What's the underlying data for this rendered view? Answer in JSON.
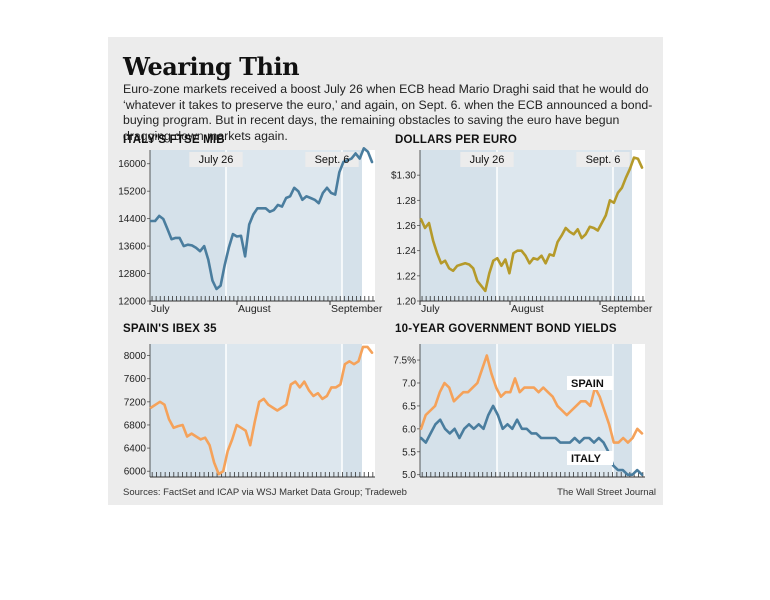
{
  "header": {
    "title": "Wearing Thin",
    "subtitle": "Euro-zone markets received a boost July 26 when ECB head Mario Draghi said that he would do ‘whatever it takes to preserve the euro,’ and again, on Sept. 6. when the ECB announced a bond-buying program. But in recent days, the remaining obstacles to saving the euro have begun dragging down markets again."
  },
  "footer": {
    "source": "Sources: FactSet and ICAP via WSJ Market Data Group; Tradeweb",
    "credit": "The Wall Street Journal"
  },
  "colors": {
    "panel": "#ececec",
    "plot_bg": "#d5e1ea",
    "italy": "#4a7d9e",
    "euro": "#b59a2a",
    "spain": "#f5a25a"
  },
  "chart_data": [
    {
      "type": "line",
      "title": "ITALY'S FTSE MIB",
      "x_ticks": [
        "July",
        "August",
        "September"
      ],
      "y_ticks": [
        "12000",
        "12800",
        "13600",
        "14400",
        "15200",
        "16000"
      ],
      "ylim": [
        12000,
        16400
      ],
      "event_labels": [
        "July 26",
        "Sept. 6"
      ],
      "series": [
        {
          "color": "#4a7d9e",
          "values": [
            14330,
            14330,
            14480,
            14390,
            14100,
            13800,
            13840,
            13840,
            13600,
            13640,
            13620,
            13550,
            13450,
            13600,
            13200,
            12600,
            12350,
            12450,
            13050,
            13550,
            13950,
            13880,
            13900,
            13300,
            14230,
            14520,
            14700,
            14700,
            14700,
            14600,
            14650,
            14800,
            14750,
            15000,
            15050,
            15300,
            15200,
            14950,
            15050,
            15000,
            14950,
            14850,
            15150,
            15300,
            15150,
            15100,
            15750,
            16050,
            16100,
            16150,
            16300,
            16150,
            16450,
            16350,
            16050
          ]
        }
      ]
    },
    {
      "type": "line",
      "title": "DOLLARS PER EURO",
      "x_ticks": [
        "July",
        "August",
        "September"
      ],
      "y_ticks": [
        "1.20",
        "1.22",
        "1.24",
        "1.26",
        "1.28",
        "$1.30"
      ],
      "ylim": [
        1.2,
        1.32
      ],
      "event_labels": [
        "July 26",
        "Sept. 6"
      ],
      "series": [
        {
          "color": "#b59a2a",
          "values": [
            1.265,
            1.258,
            1.262,
            1.248,
            1.238,
            1.23,
            1.232,
            1.226,
            1.224,
            1.228,
            1.229,
            1.23,
            1.229,
            1.226,
            1.216,
            1.212,
            1.208,
            1.222,
            1.232,
            1.234,
            1.228,
            1.233,
            1.222,
            1.238,
            1.24,
            1.24,
            1.236,
            1.23,
            1.234,
            1.233,
            1.236,
            1.23,
            1.237,
            1.236,
            1.247,
            1.252,
            1.258,
            1.255,
            1.253,
            1.257,
            1.25,
            1.253,
            1.259,
            1.258,
            1.256,
            1.262,
            1.268,
            1.28,
            1.278,
            1.286,
            1.29,
            1.298,
            1.305,
            1.314,
            1.313,
            1.306
          ]
        }
      ]
    },
    {
      "type": "line",
      "title": "SPAIN'S IBEX 35",
      "y_ticks": [
        "6000",
        "6400",
        "6800",
        "7200",
        "7600",
        "8000"
      ],
      "ylim": [
        5900,
        8200
      ],
      "series": [
        {
          "color": "#f5a25a",
          "values": [
            7100,
            7150,
            7200,
            7150,
            6900,
            6750,
            6780,
            6800,
            6600,
            6650,
            6600,
            6550,
            6580,
            6450,
            6150,
            5950,
            6000,
            6350,
            6550,
            6800,
            6750,
            6700,
            6450,
            6850,
            7200,
            7250,
            7150,
            7100,
            7050,
            7100,
            7150,
            7500,
            7550,
            7450,
            7550,
            7400,
            7300,
            7350,
            7250,
            7300,
            7450,
            7450,
            7500,
            7850,
            7900,
            7850,
            7900,
            8150,
            8150,
            8050
          ]
        }
      ]
    },
    {
      "type": "line",
      "title": "10-YEAR GOVERNMENT BOND YIELDS",
      "y_ticks": [
        "5.0",
        "5.5",
        "6.0",
        "6.5",
        "7.0",
        "7.5%"
      ],
      "ylim": [
        4.95,
        7.85
      ],
      "series": [
        {
          "name": "SPAIN",
          "color": "#f5a25a",
          "values": [
            6.0,
            6.3,
            6.4,
            6.5,
            6.8,
            7.0,
            6.9,
            6.6,
            6.7,
            6.8,
            6.8,
            6.9,
            7.0,
            7.3,
            7.6,
            7.2,
            6.9,
            6.7,
            6.8,
            6.8,
            7.1,
            6.8,
            6.9,
            6.9,
            6.9,
            6.8,
            6.9,
            6.8,
            6.7,
            6.5,
            6.4,
            6.3,
            6.4,
            6.5,
            6.6,
            6.6,
            6.5,
            6.9,
            6.7,
            6.4,
            6.1,
            5.7,
            5.7,
            5.8,
            5.7,
            5.8,
            6.0,
            5.9
          ]
        },
        {
          "name": "ITALY",
          "color": "#4a7d9e",
          "values": [
            5.8,
            5.7,
            5.9,
            6.1,
            6.2,
            6.0,
            5.9,
            6.0,
            5.8,
            6.0,
            6.1,
            6.0,
            6.1,
            6.0,
            6.3,
            6.5,
            6.3,
            6.0,
            6.1,
            6.0,
            6.2,
            6.0,
            6.0,
            5.9,
            5.9,
            5.8,
            5.8,
            5.8,
            5.8,
            5.7,
            5.7,
            5.7,
            5.8,
            5.7,
            5.8,
            5.8,
            5.7,
            5.8,
            5.7,
            5.5,
            5.2,
            5.1,
            5.1,
            5.0,
            5.0,
            5.1,
            5.0
          ]
        }
      ]
    }
  ]
}
